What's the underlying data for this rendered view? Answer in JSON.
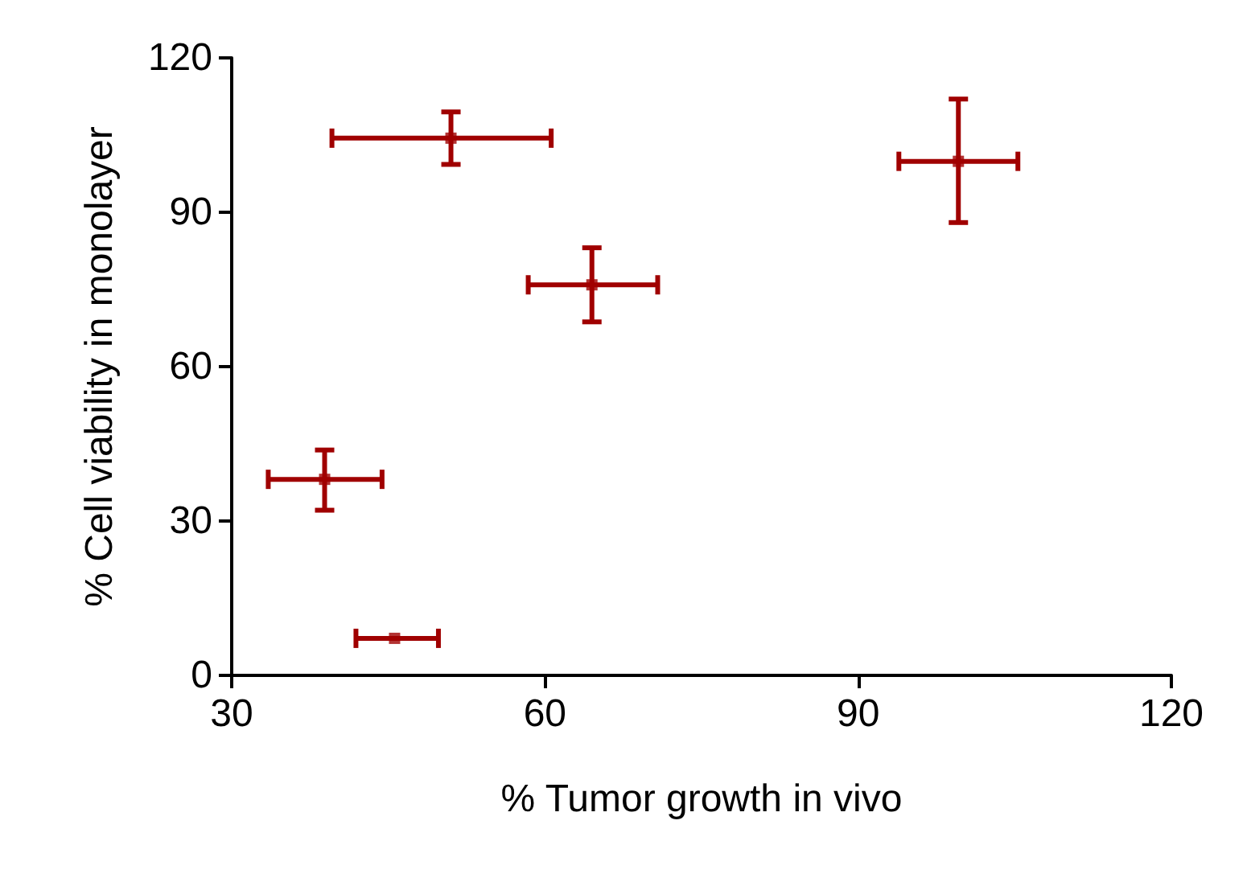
{
  "chart_data": {
    "type": "scatter",
    "xlabel": "% Tumor growth in vivo",
    "ylabel": "% Cell viability in monolayer",
    "x": [
      51,
      99.6,
      64.5,
      38.9,
      45.6
    ],
    "values": [
      104.4,
      99.9,
      75.9,
      38.1,
      7.2
    ],
    "xerrors": [
      [
        39.6,
        60.6
      ],
      [
        93.9,
        105.3
      ],
      [
        58.4,
        70.8
      ],
      [
        33.5,
        44.4
      ],
      [
        41.9,
        49.8
      ]
    ],
    "errors": [
      [
        99.3,
        109.5
      ],
      [
        88,
        112
      ],
      [
        68.7,
        83.1
      ],
      [
        32.1,
        43.8
      ],
      null
    ],
    "color": "#a00000",
    "marker": "square",
    "xlim": [
      30,
      120
    ],
    "xticks": [
      30,
      60,
      90,
      120
    ],
    "ylim": [
      0,
      120
    ],
    "yticks": [
      0,
      30,
      60,
      90,
      120
    ],
    "grid": false
  }
}
